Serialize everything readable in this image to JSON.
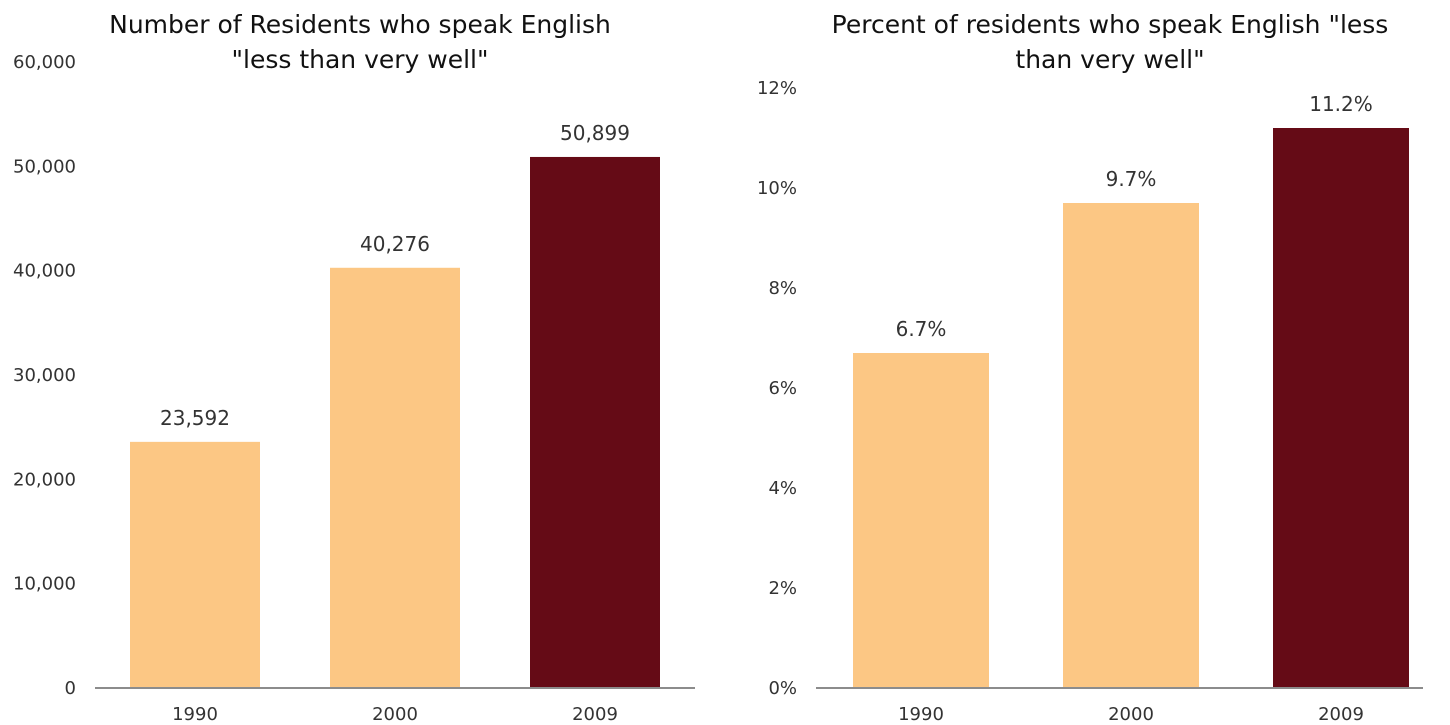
{
  "colors": {
    "light": "#fcc784",
    "dark": "#650b16",
    "axis": "#8c8c8c"
  },
  "chart_data": [
    {
      "type": "bar",
      "title_lines": [
        "Number of Residents who speak English",
        "\"less than very well\""
      ],
      "categories": [
        "1990",
        "2000",
        "2009"
      ],
      "values": [
        23592,
        40276,
        50899
      ],
      "value_labels": [
        "23,592",
        "40,276",
        "50,899"
      ],
      "ylim": [
        0,
        60000
      ],
      "yticks": [
        0,
        10000,
        20000,
        30000,
        40000,
        50000,
        60000
      ],
      "ytick_labels": [
        "0",
        "10,000",
        "20,000",
        "30,000",
        "40,000",
        "50,000",
        "60,000"
      ],
      "bar_colors": [
        "light",
        "light",
        "dark"
      ],
      "grid": false,
      "legend": "none"
    },
    {
      "type": "bar",
      "title_lines": [
        "Percent of residents who speak English \"less",
        "than very well\""
      ],
      "categories": [
        "1990",
        "2000",
        "2009"
      ],
      "values": [
        6.7,
        9.7,
        11.2
      ],
      "value_labels": [
        "6.7%",
        "9.7%",
        "11.2%"
      ],
      "ylim": [
        0,
        12
      ],
      "yticks": [
        0,
        2,
        4,
        6,
        8,
        10,
        12
      ],
      "ytick_labels": [
        "0%",
        "2%",
        "4%",
        "6%",
        "8%",
        "10%",
        "12%"
      ],
      "bar_colors": [
        "light",
        "light",
        "dark"
      ],
      "grid": false,
      "legend": "none"
    }
  ]
}
